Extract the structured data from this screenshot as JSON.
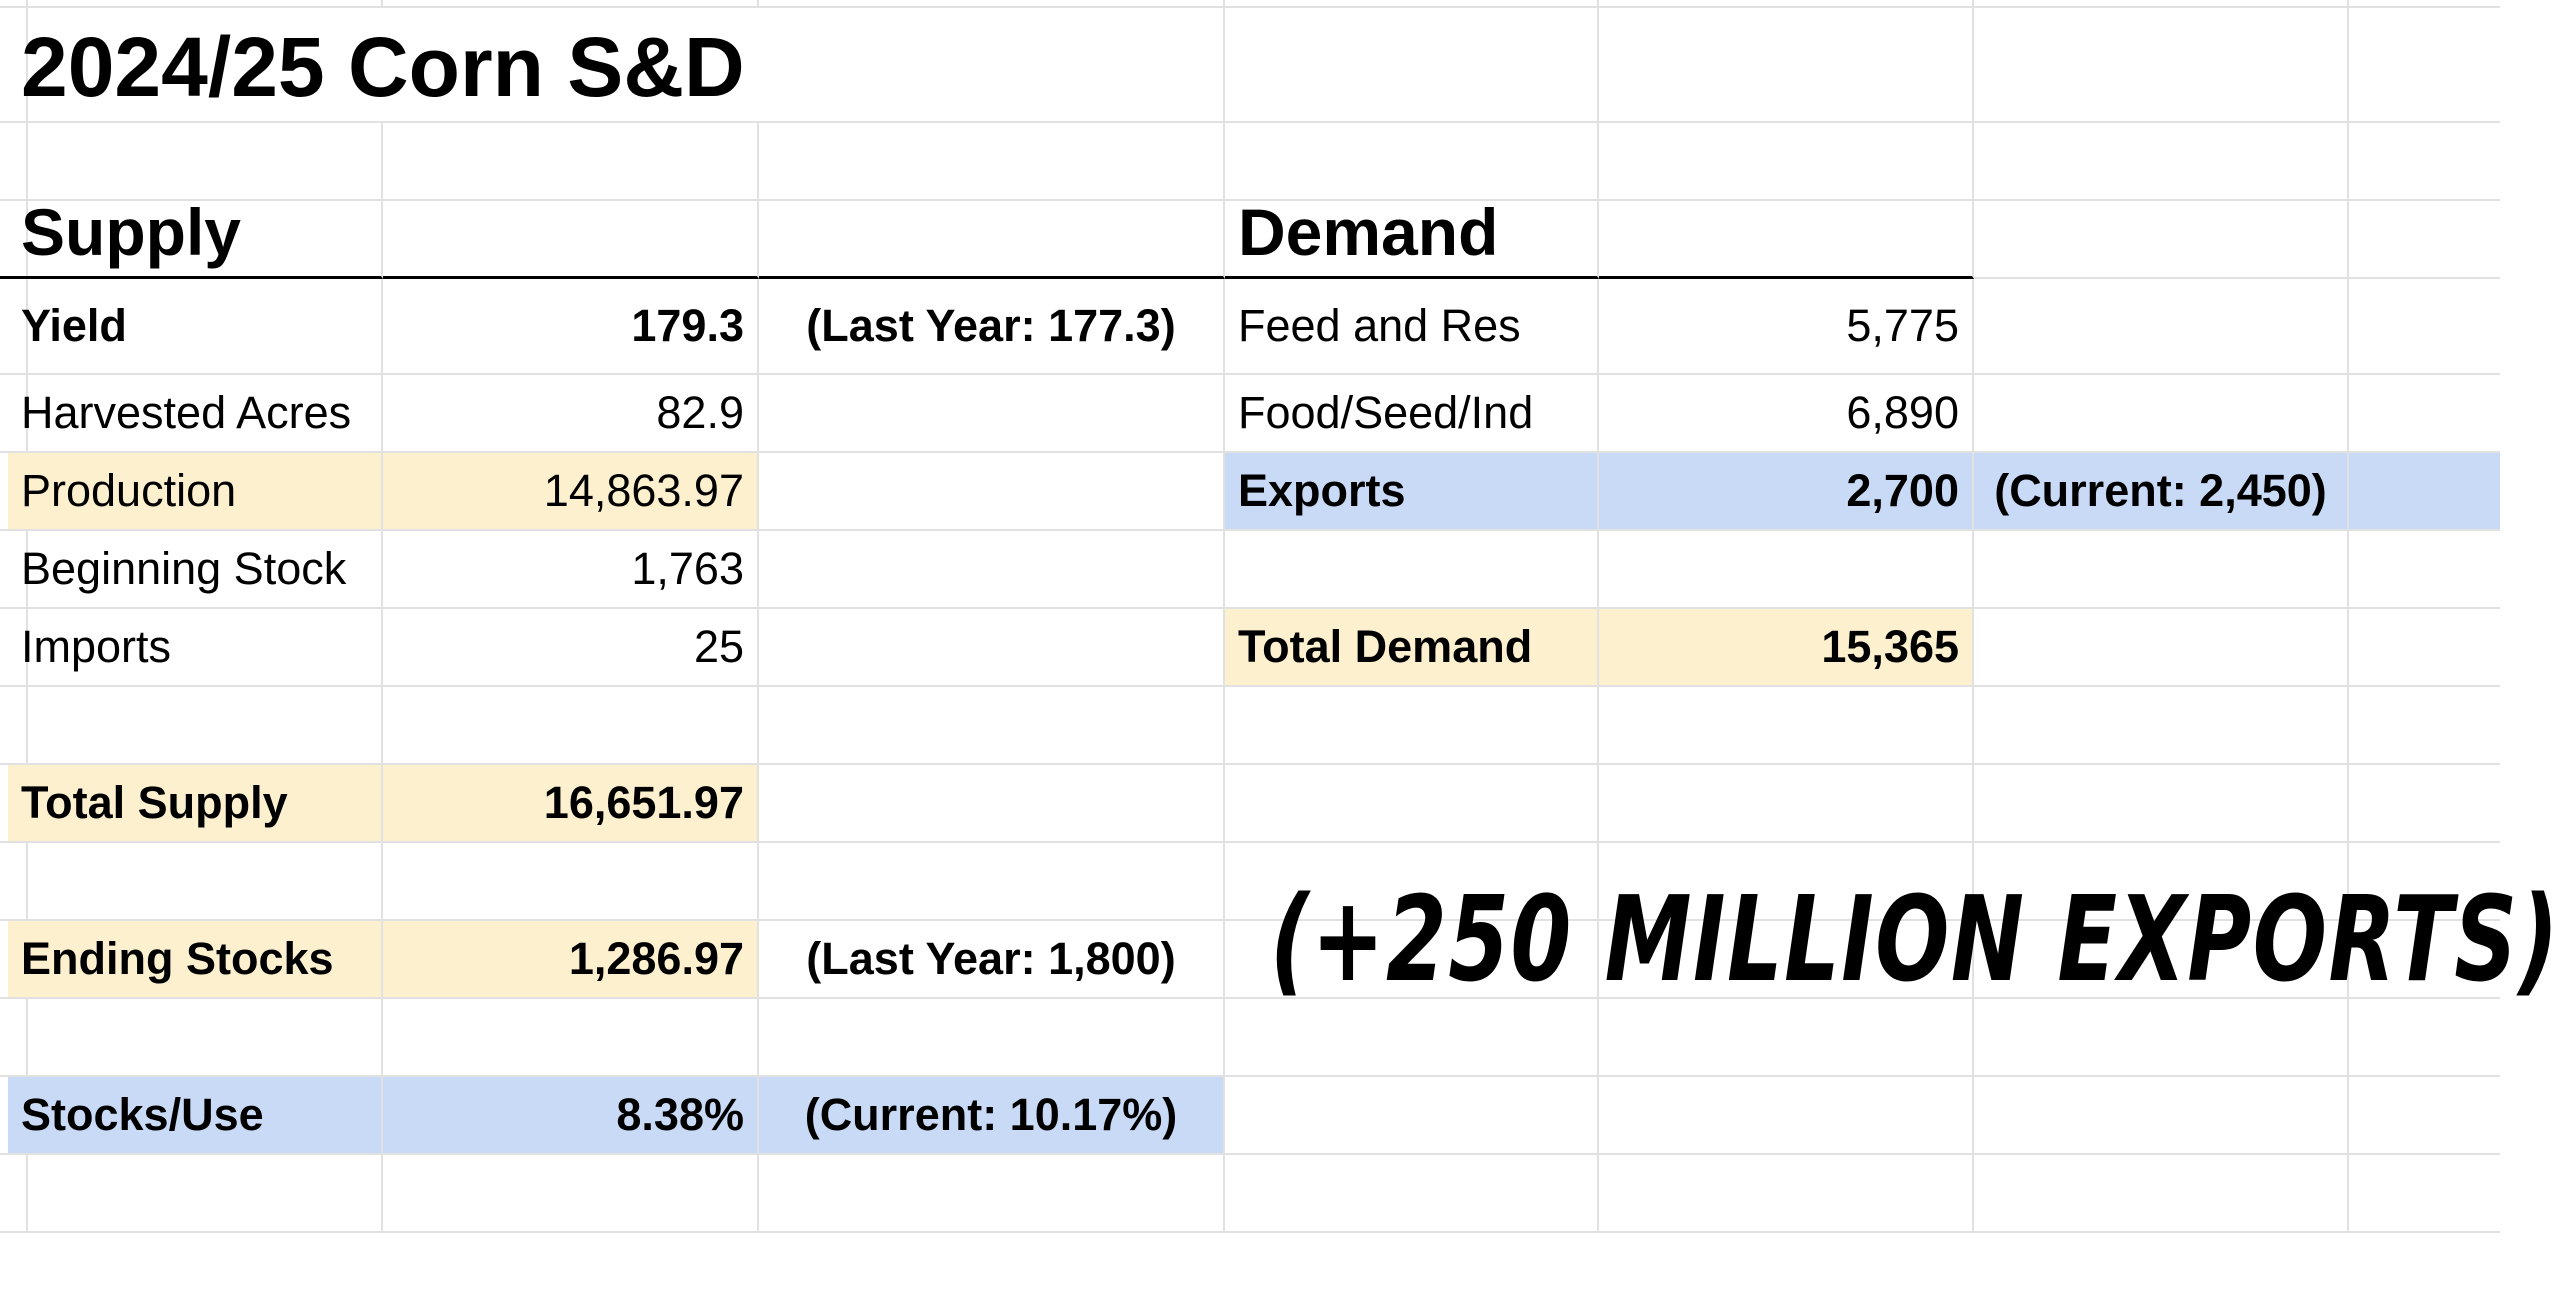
{
  "title": "2024/25 Corn S&D",
  "supply": {
    "header": "Supply",
    "yield": {
      "label": "Yield",
      "value": "179.3",
      "note": "(Last Year: 177.3)"
    },
    "harvested_acres": {
      "label": "Harvested Acres",
      "value": "82.9"
    },
    "production": {
      "label": "Production",
      "value": "14,863.97"
    },
    "beginning_stock": {
      "label": "Beginning Stock",
      "value": "1,763"
    },
    "imports": {
      "label": "Imports",
      "value": "25"
    },
    "total_supply": {
      "label": "Total Supply",
      "value": "16,651.97"
    },
    "ending_stocks": {
      "label": "Ending Stocks",
      "value": "1,286.97",
      "note": "(Last Year: 1,800)"
    },
    "stocks_use": {
      "label": "Stocks/Use",
      "value": "8.38%",
      "note": "(Current: 10.17%)"
    }
  },
  "demand": {
    "header": "Demand",
    "feed": {
      "label": "Feed and Res",
      "value": "5,775"
    },
    "food": {
      "label": "Food/Seed/Ind",
      "value": "6,890"
    },
    "exports": {
      "label": "Exports",
      "value": "2,700",
      "note": "(Current: 2,450)"
    },
    "total_demand": {
      "label": "Total Demand",
      "value": "15,365"
    }
  },
  "annotation": "(+250 MILLION EXPORTS)",
  "colors": {
    "highlight_yellow": "#fdf0cf",
    "highlight_blue": "#c9daf7",
    "gridline": "#e1e1e1"
  }
}
